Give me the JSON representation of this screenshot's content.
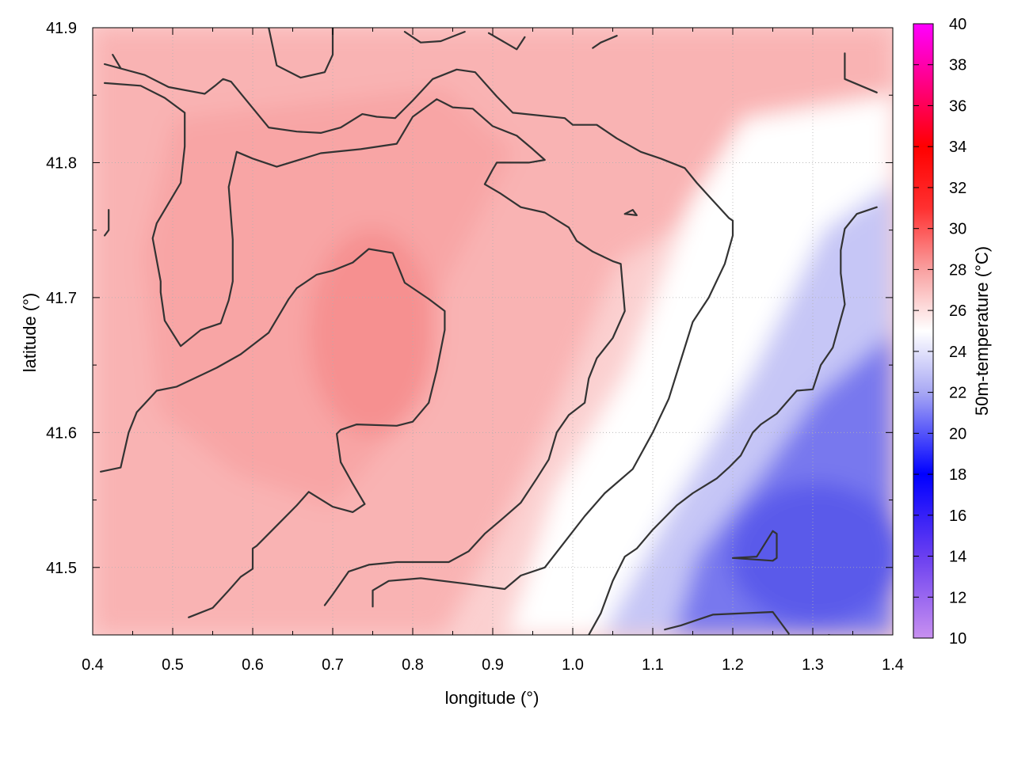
{
  "chart_data": {
    "type": "heatmap",
    "xlabel": "longitude (°)",
    "ylabel": "latitude (°)",
    "colorbar_label": "50m-temperature (°C)",
    "xlim": [
      0.4,
      1.4
    ],
    "ylim": [
      41.45,
      41.9
    ],
    "xticks": [
      "0.4",
      "0.5",
      "0.6",
      "0.7",
      "0.8",
      "0.9",
      "1.0",
      "1.1",
      "1.2",
      "1.3",
      "1.4"
    ],
    "yticks": [
      "41.5",
      "41.6",
      "41.7",
      "41.8",
      "41.9"
    ],
    "colorbar_range": [
      10,
      40
    ],
    "colorbar_ticks": [
      "10",
      "12",
      "14",
      "16",
      "18",
      "20",
      "22",
      "24",
      "26",
      "28",
      "30",
      "32",
      "34",
      "36",
      "38",
      "40"
    ],
    "colormap": [
      {
        "value": 10,
        "color": "#c890f0"
      },
      {
        "value": 14,
        "color": "#6a3ff0"
      },
      {
        "value": 18,
        "color": "#0000ff"
      },
      {
        "value": 22,
        "color": "#a8a8f4"
      },
      {
        "value": 25,
        "color": "#ffffff"
      },
      {
        "value": 28,
        "color": "#f9a0a0"
      },
      {
        "value": 31,
        "color": "#ff3030"
      },
      {
        "value": 34,
        "color": "#ff0000"
      },
      {
        "value": 37,
        "color": "#ff0080"
      },
      {
        "value": 40,
        "color": "#ff00ff"
      }
    ],
    "grid": true,
    "contours": [
      {
        "points": [
          [
            0.415,
            41.873
          ],
          [
            0.465,
            41.865
          ],
          [
            0.495,
            41.856
          ],
          [
            0.54,
            41.851
          ],
          [
            0.553,
            41.857
          ],
          [
            0.563,
            41.862
          ],
          [
            0.573,
            41.86
          ],
          [
            0.62,
            41.826
          ],
          [
            0.655,
            41.823
          ],
          [
            0.685,
            41.822
          ],
          [
            0.71,
            41.826
          ],
          [
            0.737,
            41.836
          ],
          [
            0.755,
            41.834
          ],
          [
            0.778,
            41.833
          ],
          [
            0.8,
            41.846
          ],
          [
            0.825,
            41.862
          ],
          [
            0.855,
            41.869
          ],
          [
            0.878,
            41.867
          ],
          [
            0.905,
            41.849
          ],
          [
            0.925,
            41.837
          ],
          [
            0.99,
            41.833
          ],
          [
            1.0,
            41.828
          ],
          [
            1.03,
            41.828
          ],
          [
            1.055,
            41.818
          ],
          [
            1.085,
            41.808
          ],
          [
            1.11,
            41.803
          ],
          [
            1.14,
            41.796
          ],
          [
            1.155,
            41.785
          ],
          [
            1.175,
            41.772
          ],
          [
            1.195,
            41.759
          ],
          [
            1.2,
            41.757
          ],
          [
            1.2,
            41.746
          ],
          [
            1.19,
            41.725
          ],
          [
            1.17,
            41.7
          ],
          [
            1.15,
            41.682
          ],
          [
            1.14,
            41.663
          ],
          [
            1.12,
            41.625
          ],
          [
            1.1,
            41.6
          ],
          [
            1.075,
            41.573
          ],
          [
            1.04,
            41.555
          ],
          [
            1.015,
            41.538
          ],
          [
            0.99,
            41.519
          ],
          [
            0.965,
            41.5
          ],
          [
            0.935,
            41.494
          ],
          [
            0.915,
            41.484
          ],
          [
            0.865,
            41.488
          ],
          [
            0.81,
            41.492
          ],
          [
            0.77,
            41.49
          ],
          [
            0.75,
            41.483
          ],
          [
            0.75,
            41.471
          ]
        ]
      },
      {
        "points": [
          [
            0.415,
            41.859
          ],
          [
            0.46,
            41.857
          ],
          [
            0.49,
            41.848
          ],
          [
            0.515,
            41.837
          ],
          [
            0.515,
            41.812
          ],
          [
            0.51,
            41.785
          ],
          [
            0.48,
            41.755
          ],
          [
            0.475,
            41.744
          ],
          [
            0.485,
            41.712
          ],
          [
            0.485,
            41.704
          ],
          [
            0.49,
            41.683
          ],
          [
            0.51,
            41.664
          ],
          [
            0.535,
            41.676
          ],
          [
            0.56,
            41.681
          ],
          [
            0.57,
            41.698
          ],
          [
            0.575,
            41.712
          ],
          [
            0.575,
            41.743
          ],
          [
            0.57,
            41.782
          ],
          [
            0.58,
            41.808
          ],
          [
            0.6,
            41.803
          ],
          [
            0.63,
            41.797
          ],
          [
            0.685,
            41.807
          ],
          [
            0.735,
            41.81
          ],
          [
            0.78,
            41.814
          ],
          [
            0.8,
            41.834
          ],
          [
            0.83,
            41.847
          ],
          [
            0.85,
            41.841
          ],
          [
            0.875,
            41.84
          ],
          [
            0.9,
            41.827
          ],
          [
            0.93,
            41.82
          ],
          [
            0.95,
            41.81
          ],
          [
            0.965,
            41.802
          ],
          [
            0.945,
            41.8
          ],
          [
            0.905,
            41.8
          ],
          [
            0.9,
            41.795
          ],
          [
            0.89,
            41.784
          ],
          [
            0.91,
            41.777
          ],
          [
            0.935,
            41.767
          ],
          [
            0.965,
            41.763
          ],
          [
            0.995,
            41.752
          ],
          [
            1.005,
            41.742
          ],
          [
            1.025,
            41.734
          ],
          [
            1.05,
            41.727
          ],
          [
            1.06,
            41.725
          ],
          [
            1.065,
            41.69
          ],
          [
            1.05,
            41.67
          ],
          [
            1.03,
            41.655
          ],
          [
            1.02,
            41.64
          ],
          [
            1.015,
            41.622
          ],
          [
            0.995,
            41.613
          ],
          [
            0.98,
            41.6
          ],
          [
            0.97,
            41.58
          ],
          [
            0.955,
            41.566
          ],
          [
            0.935,
            41.548
          ],
          [
            0.91,
            41.535
          ],
          [
            0.89,
            41.525
          ],
          [
            0.87,
            41.512
          ],
          [
            0.845,
            41.504
          ],
          [
            0.78,
            41.504
          ],
          [
            0.745,
            41.502
          ],
          [
            0.72,
            41.497
          ],
          [
            0.7,
            41.48
          ],
          [
            0.69,
            41.472
          ]
        ]
      },
      {
        "points": [
          [
            0.41,
            41.571
          ],
          [
            0.435,
            41.574
          ],
          [
            0.445,
            41.6
          ],
          [
            0.455,
            41.615
          ],
          [
            0.48,
            41.631
          ],
          [
            0.505,
            41.634
          ],
          [
            0.53,
            41.641
          ],
          [
            0.555,
            41.648
          ],
          [
            0.585,
            41.658
          ],
          [
            0.62,
            41.674
          ],
          [
            0.645,
            41.699
          ],
          [
            0.655,
            41.707
          ],
          [
            0.68,
            41.717
          ],
          [
            0.7,
            41.72
          ],
          [
            0.725,
            41.726
          ],
          [
            0.745,
            41.736
          ],
          [
            0.775,
            41.733
          ],
          [
            0.79,
            41.711
          ],
          [
            0.82,
            41.699
          ],
          [
            0.84,
            41.69
          ],
          [
            0.84,
            41.676
          ],
          [
            0.83,
            41.646
          ],
          [
            0.82,
            41.622
          ],
          [
            0.8,
            41.608
          ],
          [
            0.78,
            41.605
          ],
          [
            0.73,
            41.606
          ],
          [
            0.71,
            41.602
          ],
          [
            0.705,
            41.599
          ],
          [
            0.71,
            41.578
          ],
          [
            0.725,
            41.562
          ],
          [
            0.74,
            41.547
          ],
          [
            0.725,
            41.541
          ],
          [
            0.7,
            41.545
          ],
          [
            0.67,
            41.556
          ],
          [
            0.655,
            41.546
          ],
          [
            0.635,
            41.534
          ],
          [
            0.62,
            41.525
          ],
          [
            0.605,
            41.516
          ],
          [
            0.6,
            41.514
          ],
          [
            0.6,
            41.499
          ],
          [
            0.585,
            41.493
          ],
          [
            0.57,
            41.483
          ],
          [
            0.55,
            41.47
          ],
          [
            0.52,
            41.463
          ]
        ]
      },
      {
        "points": [
          [
            0.425,
            41.88
          ],
          [
            0.435,
            41.87
          ]
        ]
      },
      {
        "points": [
          [
            0.62,
            41.9
          ],
          [
            0.63,
            41.872
          ],
          [
            0.66,
            41.863
          ],
          [
            0.69,
            41.867
          ],
          [
            0.7,
            41.88
          ],
          [
            0.7,
            41.9
          ]
        ]
      },
      {
        "points": [
          [
            0.79,
            41.897
          ],
          [
            0.81,
            41.889
          ],
          [
            0.835,
            41.89
          ],
          [
            0.865,
            41.897
          ]
        ]
      },
      {
        "points": [
          [
            0.895,
            41.896
          ],
          [
            0.93,
            41.884
          ],
          [
            0.94,
            41.893
          ]
        ]
      },
      {
        "points": [
          [
            1.025,
            41.885
          ],
          [
            1.035,
            41.889
          ],
          [
            1.055,
            41.894
          ]
        ]
      },
      {
        "points": [
          [
            1.34,
            41.881
          ],
          [
            1.34,
            41.862
          ],
          [
            1.38,
            41.852
          ]
        ]
      },
      {
        "points": [
          [
            0.42,
            41.765
          ],
          [
            0.42,
            41.75
          ],
          [
            0.415,
            41.746
          ]
        ]
      },
      {
        "points": [
          [
            1.065,
            41.762
          ],
          [
            1.08,
            41.761
          ],
          [
            1.075,
            41.765
          ],
          [
            1.065,
            41.762
          ]
        ]
      },
      {
        "points": [
          [
            1.02,
            41.45
          ],
          [
            1.035,
            41.466
          ],
          [
            1.05,
            41.49
          ],
          [
            1.065,
            41.508
          ],
          [
            1.08,
            41.514
          ],
          [
            1.1,
            41.528
          ],
          [
            1.13,
            41.546
          ],
          [
            1.15,
            41.555
          ],
          [
            1.18,
            41.566
          ],
          [
            1.195,
            41.574
          ],
          [
            1.21,
            41.583
          ],
          [
            1.225,
            41.6
          ],
          [
            1.235,
            41.606
          ],
          [
            1.255,
            41.614
          ],
          [
            1.28,
            41.631
          ],
          [
            1.3,
            41.632
          ],
          [
            1.31,
            41.65
          ],
          [
            1.325,
            41.663
          ],
          [
            1.34,
            41.695
          ],
          [
            1.335,
            41.718
          ],
          [
            1.335,
            41.735
          ],
          [
            1.34,
            41.751
          ],
          [
            1.355,
            41.762
          ],
          [
            1.38,
            41.767
          ]
        ]
      },
      {
        "points": [
          [
            1.2,
            41.507
          ],
          [
            1.25,
            41.505
          ],
          [
            1.255,
            41.507
          ],
          [
            1.255,
            41.525
          ],
          [
            1.25,
            41.527
          ],
          [
            1.23,
            41.508
          ],
          [
            1.2,
            41.507
          ]
        ]
      },
      {
        "points": [
          [
            1.115,
            41.454
          ],
          [
            1.135,
            41.457
          ],
          [
            1.175,
            41.465
          ],
          [
            1.25,
            41.467
          ],
          [
            1.27,
            41.451
          ]
        ]
      },
      {
        "points": [
          [
            1.32,
            41.45
          ],
          [
            1.325,
            41.449
          ]
        ]
      }
    ]
  }
}
